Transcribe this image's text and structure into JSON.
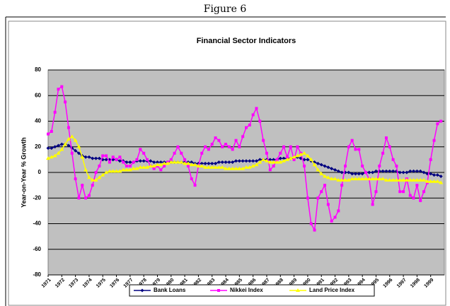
{
  "figure_label": "Figure 6",
  "chart_data": {
    "type": "line",
    "title": "Financial Sector Indicators",
    "y_label": "Year-on-Year % Growth",
    "x": [
      1971,
      1971.25,
      1971.5,
      1971.75,
      1972,
      1972.25,
      1972.5,
      1972.75,
      1973,
      1973.25,
      1973.5,
      1973.75,
      1974,
      1974.25,
      1974.5,
      1974.75,
      1975,
      1975.25,
      1975.5,
      1975.75,
      1976,
      1976.25,
      1976.5,
      1976.75,
      1977,
      1977.25,
      1977.5,
      1977.75,
      1978,
      1978.25,
      1978.5,
      1978.75,
      1979,
      1979.25,
      1979.5,
      1979.75,
      1980,
      1980.25,
      1980.5,
      1980.75,
      1981,
      1981.25,
      1981.5,
      1981.75,
      1982,
      1982.25,
      1982.5,
      1982.75,
      1983,
      1983.25,
      1983.5,
      1983.75,
      1984,
      1984.25,
      1984.5,
      1984.75,
      1985,
      1985.25,
      1985.5,
      1985.75,
      1986,
      1986.25,
      1986.5,
      1986.75,
      1987,
      1987.25,
      1987.5,
      1987.75,
      1988,
      1988.25,
      1988.5,
      1988.75,
      1989,
      1989.25,
      1989.5,
      1989.75,
      1990,
      1990.25,
      1990.5,
      1990.75,
      1991,
      1991.25,
      1991.5,
      1991.75,
      1992,
      1992.25,
      1992.5,
      1992.75,
      1993,
      1993.25,
      1993.5,
      1993.75,
      1994,
      1994.25,
      1994.5,
      1994.75,
      1995,
      1995.25,
      1995.5,
      1995.75,
      1996,
      1996.25,
      1996.5,
      1996.75,
      1997,
      1997.25,
      1997.5,
      1997.75,
      1998,
      1998.25,
      1998.5,
      1998.75,
      1999,
      1999.25,
      1999.5,
      1999.75
    ],
    "series": [
      {
        "name": "Bank Loans",
        "color": "#000080",
        "marker": "diamond",
        "values": [
          19,
          19,
          20,
          21,
          22,
          22,
          21,
          19,
          17,
          15,
          13,
          12,
          12,
          11,
          11,
          11,
          10,
          10,
          10,
          10,
          10,
          9,
          9,
          8,
          8,
          8,
          9,
          9,
          9,
          9,
          9,
          8,
          8,
          8,
          8,
          8,
          8,
          8,
          8,
          8,
          8,
          8,
          8,
          7,
          7,
          7,
          7,
          7,
          7,
          7,
          8,
          8,
          8,
          8,
          8,
          9,
          9,
          9,
          9,
          9,
          9,
          9,
          10,
          10,
          10,
          10,
          10,
          10,
          11,
          11,
          11,
          11,
          11,
          12,
          11,
          10,
          10,
          9,
          8,
          7,
          6,
          5,
          4,
          3,
          2,
          1,
          0,
          0,
          0,
          -1,
          -1,
          -1,
          -1,
          0,
          0,
          0,
          1,
          1,
          1,
          1,
          1,
          1,
          1,
          0,
          0,
          0,
          1,
          1,
          1,
          1,
          0,
          -1,
          -1,
          -2,
          -2,
          -3
        ]
      },
      {
        "name": "Nikkei Index",
        "color": "#ff00ff",
        "marker": "square",
        "values": [
          30,
          32,
          47,
          65,
          67,
          55,
          35,
          15,
          -5,
          -20,
          -10,
          -20,
          -18,
          -10,
          0,
          5,
          13,
          13,
          8,
          12,
          10,
          12,
          8,
          5,
          5,
          8,
          10,
          18,
          15,
          10,
          5,
          3,
          5,
          2,
          5,
          8,
          10,
          15,
          20,
          15,
          10,
          5,
          -5,
          -10,
          5,
          15,
          20,
          18,
          22,
          27,
          25,
          20,
          22,
          20,
          18,
          25,
          20,
          28,
          35,
          37,
          45,
          50,
          40,
          25,
          15,
          2,
          5,
          10,
          15,
          20,
          12,
          20,
          10,
          20,
          15,
          5,
          -20,
          -40,
          -45,
          -20,
          -15,
          -10,
          -25,
          -38,
          -35,
          -30,
          -10,
          5,
          20,
          25,
          18,
          18,
          5,
          0,
          -5,
          -25,
          -15,
          5,
          15,
          27,
          20,
          10,
          5,
          -15,
          -15,
          -5,
          -18,
          -20,
          -10,
          -22,
          -15,
          -8,
          10,
          25,
          38,
          40
        ]
      },
      {
        "name": "Land Price Index",
        "color": "#ffff00",
        "marker": "triangle",
        "values": [
          11,
          12,
          13,
          15,
          18,
          22,
          26,
          28,
          25,
          20,
          12,
          2,
          -4,
          -6,
          -6,
          -4,
          -2,
          0,
          1,
          1,
          1,
          1,
          2,
          2,
          2,
          3,
          3,
          4,
          4,
          4,
          5,
          5,
          6,
          6,
          7,
          7,
          8,
          8,
          8,
          8,
          7,
          7,
          6,
          6,
          5,
          5,
          4,
          4,
          4,
          4,
          4,
          4,
          3,
          3,
          3,
          3,
          3,
          3,
          4,
          4,
          5,
          6,
          8,
          10,
          9,
          8,
          8,
          8,
          8,
          9,
          10,
          11,
          12,
          13,
          14,
          15,
          13,
          10,
          6,
          2,
          -1,
          -3,
          -4,
          -5,
          -5,
          -6,
          -6,
          -6,
          -6,
          -5,
          -5,
          -5,
          -5,
          -5,
          -5,
          -5,
          -5,
          -5,
          -5,
          -6,
          -6,
          -6,
          -6,
          -6,
          -6,
          -6,
          -6,
          -6,
          -6,
          -6,
          -6,
          -7,
          -7,
          -7,
          -7,
          -8
        ]
      }
    ],
    "xlim": [
      1971,
      2000
    ],
    "xticks": [
      1971,
      1972,
      1973,
      1974,
      1975,
      1976,
      1977,
      1978,
      1979,
      1980,
      1981,
      1982,
      1983,
      1984,
      1985,
      1986,
      1987,
      1988,
      1989,
      1990,
      1991,
      1992,
      1993,
      1994,
      1995,
      1996,
      1997,
      1998,
      1999
    ],
    "ylim": [
      -80,
      80
    ],
    "yticks": [
      80,
      60,
      40,
      20,
      0,
      -20,
      -40,
      -60,
      -80
    ],
    "grid": true,
    "plot_background": "#c0c0c0",
    "legend": "bottom"
  }
}
